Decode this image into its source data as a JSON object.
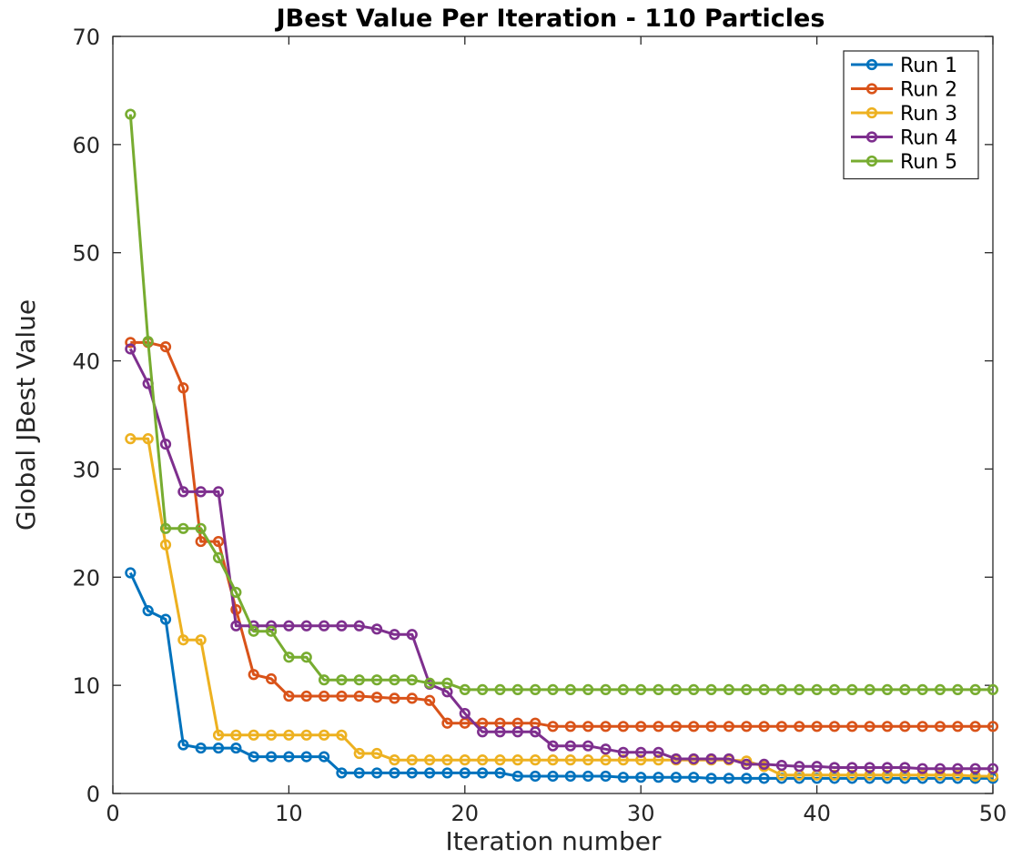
{
  "chart_data": {
    "type": "line",
    "title": "JBest Value Per Iteration - 110 Particles",
    "xlabel": "Iteration number",
    "ylabel": "Global JBest Value",
    "xlim": [
      0,
      50
    ],
    "ylim": [
      0,
      70
    ],
    "xticks": [
      0,
      10,
      20,
      30,
      40,
      50
    ],
    "yticks": [
      0,
      10,
      20,
      30,
      40,
      50,
      60,
      70
    ],
    "grid": false,
    "legend_position": "top-right",
    "x": [
      1,
      2,
      3,
      4,
      5,
      6,
      7,
      8,
      9,
      10,
      11,
      12,
      13,
      14,
      15,
      16,
      17,
      18,
      19,
      20,
      21,
      22,
      23,
      24,
      25,
      26,
      27,
      28,
      29,
      30,
      31,
      32,
      33,
      34,
      35,
      36,
      37,
      38,
      39,
      40,
      41,
      42,
      43,
      44,
      45,
      46,
      47,
      48,
      49,
      50
    ],
    "series": [
      {
        "name": "Run 1",
        "color": "#0072BD",
        "values": [
          20.4,
          16.9,
          16.1,
          4.5,
          4.2,
          4.2,
          4.2,
          3.4,
          3.4,
          3.4,
          3.4,
          3.4,
          1.9,
          1.9,
          1.9,
          1.9,
          1.9,
          1.9,
          1.9,
          1.9,
          1.9,
          1.9,
          1.6,
          1.6,
          1.6,
          1.6,
          1.6,
          1.6,
          1.5,
          1.5,
          1.5,
          1.5,
          1.5,
          1.4,
          1.4,
          1.4,
          1.4,
          1.4,
          1.4,
          1.4,
          1.4,
          1.4,
          1.4,
          1.4,
          1.4,
          1.4,
          1.4,
          1.4,
          1.4,
          1.4
        ]
      },
      {
        "name": "Run 2",
        "color": "#D95319",
        "values": [
          41.7,
          41.7,
          41.3,
          37.5,
          23.3,
          23.3,
          17.0,
          11.0,
          10.6,
          9.0,
          9.0,
          9.0,
          9.0,
          9.0,
          8.9,
          8.8,
          8.8,
          8.6,
          6.5,
          6.5,
          6.5,
          6.5,
          6.5,
          6.5,
          6.2,
          6.2,
          6.2,
          6.2,
          6.2,
          6.2,
          6.2,
          6.2,
          6.2,
          6.2,
          6.2,
          6.2,
          6.2,
          6.2,
          6.2,
          6.2,
          6.2,
          6.2,
          6.2,
          6.2,
          6.2,
          6.2,
          6.2,
          6.2,
          6.2,
          6.2
        ]
      },
      {
        "name": "Run 3",
        "color": "#EDB120",
        "values": [
          32.8,
          32.8,
          23.0,
          14.2,
          14.2,
          5.4,
          5.4,
          5.4,
          5.4,
          5.4,
          5.4,
          5.4,
          5.4,
          3.7,
          3.7,
          3.1,
          3.1,
          3.1,
          3.1,
          3.1,
          3.1,
          3.1,
          3.1,
          3.1,
          3.1,
          3.1,
          3.1,
          3.1,
          3.1,
          3.1,
          3.1,
          3.1,
          3.1,
          3.1,
          3.1,
          3.0,
          2.5,
          1.7,
          1.7,
          1.7,
          1.7,
          1.7,
          1.7,
          1.7,
          1.7,
          1.7,
          1.7,
          1.7,
          1.6,
          1.6
        ]
      },
      {
        "name": "Run 4",
        "color": "#7E2F8E",
        "values": [
          41.1,
          37.9,
          32.3,
          27.9,
          27.9,
          27.9,
          15.5,
          15.5,
          15.5,
          15.5,
          15.5,
          15.5,
          15.5,
          15.5,
          15.2,
          14.7,
          14.7,
          10.1,
          9.4,
          7.4,
          5.7,
          5.7,
          5.7,
          5.7,
          4.4,
          4.4,
          4.4,
          4.1,
          3.8,
          3.8,
          3.8,
          3.2,
          3.2,
          3.2,
          3.2,
          2.7,
          2.7,
          2.6,
          2.5,
          2.5,
          2.4,
          2.4,
          2.4,
          2.4,
          2.4,
          2.3,
          2.3,
          2.3,
          2.3,
          2.3
        ]
      },
      {
        "name": "Run 5",
        "color": "#77AC30",
        "values": [
          62.8,
          41.8,
          24.5,
          24.5,
          24.5,
          21.8,
          18.6,
          15.0,
          15.0,
          12.6,
          12.6,
          10.5,
          10.5,
          10.5,
          10.5,
          10.5,
          10.5,
          10.2,
          10.2,
          9.6,
          9.6,
          9.6,
          9.6,
          9.6,
          9.6,
          9.6,
          9.6,
          9.6,
          9.6,
          9.6,
          9.6,
          9.6,
          9.6,
          9.6,
          9.6,
          9.6,
          9.6,
          9.6,
          9.6,
          9.6,
          9.6,
          9.6,
          9.6,
          9.6,
          9.6,
          9.6,
          9.6,
          9.6,
          9.6,
          9.6
        ]
      }
    ]
  }
}
